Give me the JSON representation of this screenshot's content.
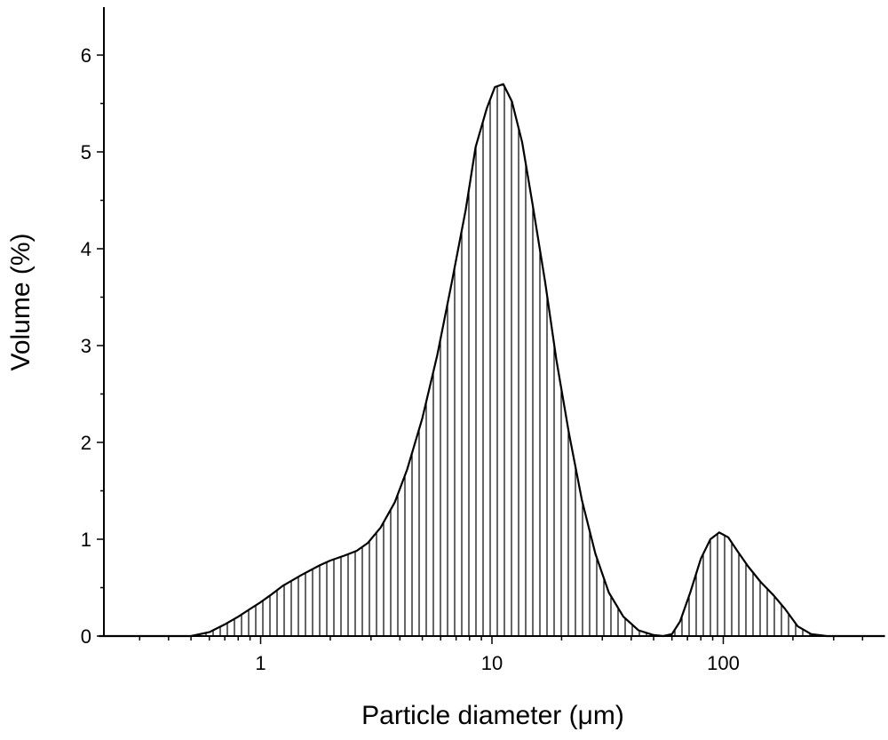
{
  "chart_data": {
    "type": "area",
    "xlabel": "Particle diameter (μm)",
    "ylabel": "Volume (%)",
    "xscale": "log",
    "xlim": [
      0.2,
      500
    ],
    "ylim": [
      0,
      6.5
    ],
    "xticks": [
      {
        "value": 1,
        "label": "1"
      },
      {
        "value": 10,
        "label": "10"
      },
      {
        "value": 100,
        "label": "100"
      }
    ],
    "yticks": [
      {
        "value": 0,
        "label": "0"
      },
      {
        "value": 1,
        "label": "1"
      },
      {
        "value": 2,
        "label": "2"
      },
      {
        "value": 3,
        "label": "3"
      },
      {
        "value": 4,
        "label": "4"
      },
      {
        "value": 5,
        "label": "5"
      },
      {
        "value": 6,
        "label": "6"
      }
    ],
    "fill": "vertical-hatch",
    "grid": false,
    "series": [
      {
        "x": [
          0.2,
          0.5,
          0.6,
          0.7,
          0.8,
          0.9,
          1.0,
          1.1,
          1.25,
          1.5,
          1.8,
          2.0,
          2.3,
          2.6,
          2.9,
          3.3,
          3.8,
          4.3,
          5.0,
          5.8,
          6.7,
          7.7,
          8.5,
          9.5,
          10.3,
          11.2,
          12.2,
          13.5,
          15.0,
          17.0,
          19.0,
          21.5,
          24.5,
          28.0,
          32.0,
          37.0,
          43.0,
          50.0,
          55.0,
          60.0,
          65.0,
          72.0,
          80.0,
          88.0,
          96.0,
          105.0,
          115.0,
          128.0,
          145.0,
          165.0,
          185.0,
          210.0,
          240.0,
          280.0,
          500.0
        ],
        "y": [
          0,
          0,
          0.04,
          0.12,
          0.2,
          0.28,
          0.35,
          0.42,
          0.52,
          0.63,
          0.73,
          0.78,
          0.83,
          0.88,
          0.96,
          1.12,
          1.38,
          1.72,
          2.25,
          2.9,
          3.65,
          4.4,
          5.05,
          5.45,
          5.67,
          5.7,
          5.52,
          5.1,
          4.45,
          3.65,
          2.85,
          2.1,
          1.4,
          0.85,
          0.45,
          0.2,
          0.06,
          0.01,
          0.0,
          0.02,
          0.15,
          0.45,
          0.8,
          1.0,
          1.07,
          1.02,
          0.88,
          0.72,
          0.56,
          0.42,
          0.28,
          0.1,
          0.02,
          0.0,
          0.0
        ]
      }
    ]
  }
}
